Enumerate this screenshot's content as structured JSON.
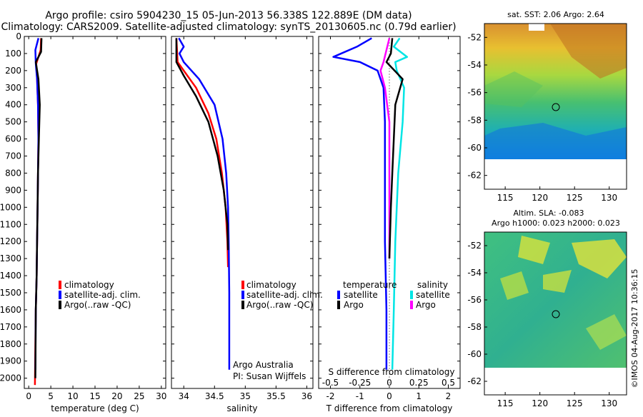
{
  "titles": {
    "line1": "Argo profile: csiro 5904230_15 05-Jun-2013 56.338S 122.889E (DM data)",
    "line2": "Climatology: CARS2009. Satellite-adjusted climatology: synTS_20130605.nc (0.79d earlier)"
  },
  "colors": {
    "climatology": "#ff0000",
    "satellite": "#0000ff",
    "argo": "#000000",
    "argo_salinity": "#ff00ff",
    "satellite_salinity": "#00e5e5"
  },
  "chart_data": [
    {
      "type": "line",
      "name": "temperature-profile",
      "xlabel": "temperature (deg C)",
      "xlim": [
        -1,
        31
      ],
      "ylim": [
        2060,
        0
      ],
      "xticks": [
        0,
        5,
        10,
        15,
        20,
        25,
        30
      ],
      "yticks": [
        0,
        100,
        200,
        300,
        400,
        500,
        600,
        700,
        800,
        900,
        1000,
        1100,
        1200,
        1300,
        1400,
        1500,
        1600,
        1700,
        1800,
        1900,
        2000
      ],
      "legend": [
        "climatology",
        "satellite-adj. clim.",
        "Argo(..raw -QC)"
      ],
      "series": [
        {
          "name": "climatology",
          "color": "#ff0000",
          "x": [
            2.8,
            2.7,
            1.7,
            1.9,
            2.1,
            2.2,
            2.1,
            2.0,
            1.9,
            1.8,
            1.6,
            1.5,
            1.4
          ],
          "y": [
            10,
            80,
            160,
            250,
            400,
            600,
            800,
            1000,
            1200,
            1400,
            1600,
            1800,
            2040
          ]
        },
        {
          "name": "satellite-adj. clim.",
          "color": "#0000ff",
          "x": [
            2.2,
            1.5,
            1.6,
            1.9,
            2.1,
            2.2,
            2.1,
            2.0,
            1.9,
            1.8,
            1.6,
            1.5
          ],
          "y": [
            10,
            80,
            160,
            250,
            400,
            600,
            800,
            1000,
            1200,
            1400,
            1600,
            1950
          ]
        },
        {
          "name": "Argo(..raw -QC)",
          "color": "#000000",
          "x": [
            2.9,
            2.8,
            1.6,
            2.2,
            2.5,
            2.3,
            2.1,
            2.0,
            1.9,
            1.8,
            1.6,
            1.5
          ],
          "y": [
            10,
            90,
            150,
            250,
            400,
            600,
            800,
            1000,
            1200,
            1400,
            1600,
            2000
          ]
        }
      ]
    },
    {
      "type": "line",
      "name": "salinity-profile",
      "xlabel": "salinity",
      "xlim": [
        33.8,
        36.1
      ],
      "ylim": [
        2060,
        0
      ],
      "xticks": [
        34,
        34.5,
        35,
        35.5,
        36
      ],
      "legend": [
        "climatology",
        "satellite-adj. clim.",
        "Argo(..raw -QC)"
      ],
      "annotations": [
        "Argo Australia",
        "PI: Susan Wijffels"
      ],
      "series": [
        {
          "name": "climatology",
          "color": "#ff0000",
          "x": [
            33.88,
            33.9,
            34.0,
            34.2,
            34.4,
            34.53,
            34.62,
            34.68,
            34.71,
            34.72
          ],
          "y": [
            10,
            150,
            200,
            300,
            450,
            600,
            800,
            1000,
            1200,
            1350
          ]
        },
        {
          "name": "satellite-adj. clim.",
          "color": "#0000ff",
          "x": [
            33.92,
            34.0,
            33.93,
            34.0,
            34.25,
            34.5,
            34.63,
            34.69,
            34.72,
            34.73,
            34.74,
            34.74
          ],
          "y": [
            10,
            60,
            100,
            150,
            250,
            400,
            600,
            800,
            1000,
            1200,
            1500,
            1950
          ]
        },
        {
          "name": "Argo(..raw -QC)",
          "color": "#000000",
          "x": [
            33.88,
            33.88,
            34.0,
            34.2,
            34.4,
            34.55,
            34.65,
            34.71,
            34.72
          ],
          "y": [
            10,
            150,
            230,
            350,
            500,
            700,
            900,
            1100,
            1250
          ]
        }
      ]
    },
    {
      "type": "line",
      "name": "difference-profile",
      "xlabel": "T difference from climatology",
      "xlabel_top": "S difference from climatology",
      "xlim": [
        -2.4,
        2.4
      ],
      "ylim": [
        2060,
        0
      ],
      "xticks": [
        -2,
        -1,
        0,
        1,
        2
      ],
      "xticks_s": [
        "-0.5",
        "-0.25",
        "0",
        "0.25",
        "0.5"
      ],
      "legend_headers": [
        "temperature",
        "salinity"
      ],
      "legend": [
        "satellite",
        "Argo",
        "satellite",
        "Argo"
      ],
      "series": [
        {
          "name": "satellite",
          "group": "temperature",
          "color": "#0000ff",
          "x": [
            -0.6,
            -1.1,
            -1.9,
            -1.0,
            -0.4,
            -0.2,
            -0.15,
            -0.15,
            -0.15,
            -0.1,
            -0.1
          ],
          "y": [
            10,
            60,
            120,
            150,
            200,
            300,
            500,
            800,
            1200,
            1600,
            1950
          ]
        },
        {
          "name": "satellite",
          "group": "salinity",
          "color": "#00e5e5",
          "x": [
            0.35,
            0.15,
            0.6,
            0.2,
            0.25,
            0.5,
            0.45,
            0.3,
            0.2,
            0.15,
            0.1
          ],
          "y": [
            10,
            60,
            120,
            150,
            200,
            300,
            500,
            800,
            1200,
            1600,
            1950
          ]
        },
        {
          "name": "Argo",
          "group": "salinity",
          "color": "#ff00ff",
          "x": [
            0.0,
            -0.2,
            -0.3,
            -0.15,
            0.0,
            0.0,
            0.0,
            0.0
          ],
          "y": [
            10,
            150,
            200,
            300,
            500,
            800,
            1100,
            1300
          ]
        },
        {
          "name": "Argo",
          "group": "temperature",
          "color": "#000000",
          "x": [
            0.1,
            0.05,
            -0.1,
            0.45,
            0.2,
            0.15,
            0.1,
            0.05,
            0.0
          ],
          "y": [
            10,
            100,
            150,
            250,
            400,
            600,
            800,
            1000,
            1300
          ]
        }
      ]
    }
  ],
  "maps": [
    {
      "title": "sat. SST: 2.06 Argo: 2.64",
      "yticks": [
        "-52",
        "-54",
        "-56",
        "-58",
        "-60",
        "-62"
      ],
      "xticks": [
        "115",
        "120",
        "125",
        "130"
      ]
    },
    {
      "title": "Altim. SLA: -0.083",
      "title2": "Argo h1000: 0.023 h2000: 0.023",
      "yticks": [
        "-52",
        "-54",
        "-56",
        "-58",
        "-60",
        "-62"
      ],
      "xticks": [
        "115",
        "120",
        "125",
        "130"
      ]
    }
  ],
  "copyright": "©IMOS 04-Aug-2017 10:36:15"
}
